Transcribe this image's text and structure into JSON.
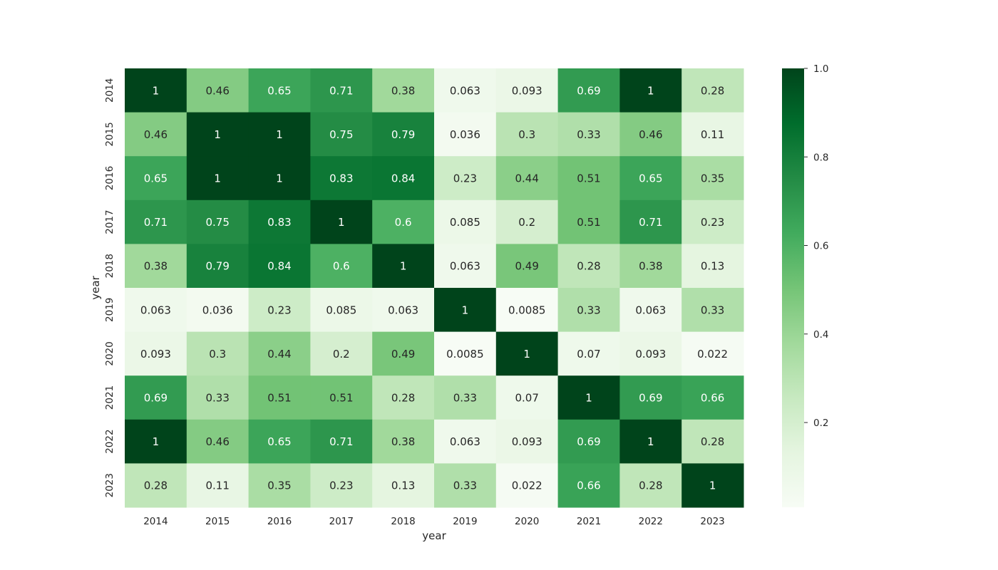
{
  "chart_data": {
    "type": "heatmap",
    "title": "",
    "xlabel": "year",
    "ylabel": "year",
    "x_categories": [
      "2014",
      "2015",
      "2016",
      "2017",
      "2018",
      "2019",
      "2020",
      "2021",
      "2022",
      "2023"
    ],
    "y_categories": [
      "2014",
      "2015",
      "2016",
      "2017",
      "2018",
      "2019",
      "2020",
      "2021",
      "2022",
      "2023"
    ],
    "values": [
      [
        1,
        0.46,
        0.65,
        0.71,
        0.38,
        0.063,
        0.093,
        0.69,
        1,
        0.28
      ],
      [
        0.46,
        1,
        1,
        0.75,
        0.79,
        0.036,
        0.3,
        0.33,
        0.46,
        0.11
      ],
      [
        0.65,
        1,
        1,
        0.83,
        0.84,
        0.23,
        0.44,
        0.51,
        0.65,
        0.35
      ],
      [
        0.71,
        0.75,
        0.83,
        1,
        0.6,
        0.085,
        0.2,
        0.51,
        0.71,
        0.23
      ],
      [
        0.38,
        0.79,
        0.84,
        0.6,
        1,
        0.063,
        0.49,
        0.28,
        0.38,
        0.13
      ],
      [
        0.063,
        0.036,
        0.23,
        0.085,
        0.063,
        1,
        0.0085,
        0.33,
        0.063,
        0.33
      ],
      [
        0.093,
        0.3,
        0.44,
        0.2,
        0.49,
        0.0085,
        1,
        0.07,
        0.093,
        0.022
      ],
      [
        0.69,
        0.33,
        0.51,
        0.51,
        0.28,
        0.33,
        0.07,
        1,
        0.69,
        0.66
      ],
      [
        1,
        0.46,
        0.65,
        0.71,
        0.38,
        0.063,
        0.093,
        0.69,
        1,
        0.28
      ],
      [
        0.28,
        0.11,
        0.35,
        0.23,
        0.13,
        0.33,
        0.022,
        0.66,
        0.28,
        1
      ]
    ],
    "value_range": [
      0.0085,
      1
    ],
    "colormap": "Greens",
    "colormap_stops": [
      "#f7fcf5",
      "#e5f5e0",
      "#c7e9c0",
      "#a1d99b",
      "#74c476",
      "#41ab5d",
      "#238b45",
      "#006d2c",
      "#00441b"
    ],
    "annotation_colors": {
      "dark_text": "#262626",
      "light_text": "#ffffff"
    },
    "colorbar": {
      "ticks": [
        0.2,
        0.4,
        0.6,
        0.8,
        1.0
      ],
      "tick_labels": [
        "0.2",
        "0.4",
        "0.6",
        "0.8",
        "1.0"
      ]
    },
    "legend": "colorbar-right",
    "grid": false
  }
}
